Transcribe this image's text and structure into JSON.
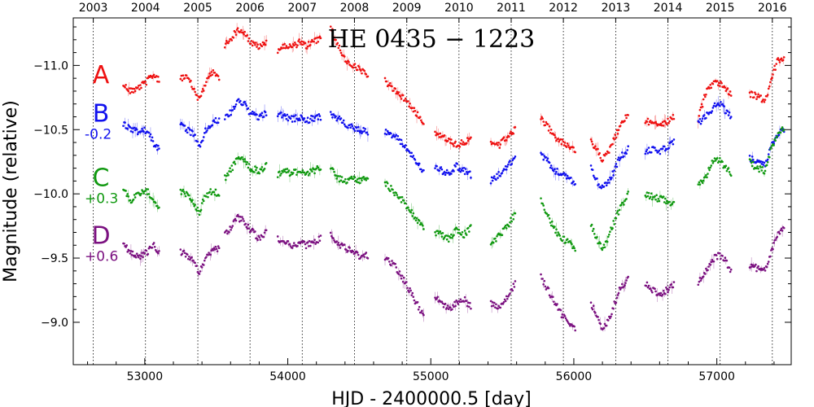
{
  "chart_data": {
    "type": "scatter",
    "title": "HE 0435 − 1223",
    "xlabel": "HJD - 2400000.5 [day]",
    "ylabel": "Magnitude (relative)",
    "xlim": [
      52500,
      57520
    ],
    "ylim": [
      -8.67,
      -11.37
    ],
    "y_inverted": true,
    "x_ticks": [
      53000,
      54000,
      55000,
      56000,
      57000
    ],
    "y_ticks": [
      -9.0,
      -9.5,
      -10.0,
      -10.5,
      -11.0
    ],
    "y_tick_labels": [
      "−9.0",
      "−9.5",
      "−10.0",
      "−10.5",
      "−11.0"
    ],
    "top_axis": {
      "years": [
        "2003",
        "2004",
        "2005",
        "2006",
        "2007",
        "2008",
        "2009",
        "2010",
        "2011",
        "2012",
        "2013",
        "2014",
        "2015",
        "2016"
      ],
      "year_mjd": [
        52640,
        53005,
        53371,
        53736,
        54101,
        54466,
        54832,
        55197,
        55562,
        55927,
        56293,
        56658,
        57023,
        57388
      ]
    },
    "grid": "vertical dotted lines at year boundaries",
    "series": [
      {
        "name": "A",
        "offset_label": "",
        "color": "#ee1111",
        "segments": [
          {
            "x": [
              52850,
              52900,
              52960,
              53020,
              53060,
              53100
            ],
            "y": [
              -10.85,
              -10.8,
              -10.83,
              -10.88,
              -10.93,
              -10.88
            ]
          },
          {
            "x": [
              53250,
              53300,
              53350,
              53380,
              53420,
              53470,
              53520
            ],
            "y": [
              -10.91,
              -10.9,
              -10.8,
              -10.73,
              -10.85,
              -10.95,
              -10.9
            ]
          },
          {
            "x": [
              53560,
              53610,
              53650,
              53700,
              53740,
              53800,
              53850
            ],
            "y": [
              -11.15,
              -11.22,
              -11.28,
              -11.25,
              -11.18,
              -11.14,
              -11.18
            ]
          },
          {
            "x": [
              53930,
              53980,
              54030,
              54080,
              54130,
              54180,
              54230
            ],
            "y": [
              -11.12,
              -11.16,
              -11.14,
              -11.18,
              -11.15,
              -11.18,
              -11.22
            ]
          },
          {
            "x": [
              54300,
              54330,
              54360,
              54400,
              54450,
              54500,
              54560
            ],
            "y": [
              -11.3,
              -11.2,
              -11.15,
              -11.05,
              -11.0,
              -10.97,
              -10.91
            ]
          },
          {
            "x": [
              54680,
              54740,
              54800,
              54850,
              54900,
              54950
            ],
            "y": [
              -10.88,
              -10.81,
              -10.76,
              -10.7,
              -10.63,
              -10.55
            ]
          },
          {
            "x": [
              55030,
              55080,
              55130,
              55180,
              55230,
              55280
            ],
            "y": [
              -10.48,
              -10.45,
              -10.42,
              -10.38,
              -10.4,
              -10.42
            ]
          },
          {
            "x": [
              55420,
              55480,
              55540,
              55590
            ],
            "y": [
              -10.4,
              -10.38,
              -10.45,
              -10.5
            ]
          },
          {
            "x": [
              55770,
              55820,
              55870,
              55920,
              55970,
              56010
            ],
            "y": [
              -10.58,
              -10.52,
              -10.44,
              -10.4,
              -10.37,
              -10.33
            ]
          },
          {
            "x": [
              56120,
              56160,
              56200,
              56230,
              56270,
              56320,
              56380
            ],
            "y": [
              -10.4,
              -10.34,
              -10.27,
              -10.3,
              -10.4,
              -10.52,
              -10.62
            ]
          },
          {
            "x": [
              56500,
              56550,
              56600,
              56650,
              56700
            ],
            "y": [
              -10.56,
              -10.56,
              -10.54,
              -10.56,
              -10.6
            ]
          },
          {
            "x": [
              56870,
              56920,
              56980,
              57020,
              57060,
              57100
            ],
            "y": [
              -10.58,
              -10.78,
              -10.88,
              -10.86,
              -10.82,
              -10.78
            ]
          },
          {
            "x": [
              57230,
              57280,
              57340,
              57380,
              57430,
              57470
            ],
            "y": [
              -10.78,
              -10.76,
              -10.72,
              -10.9,
              -11.05,
              -11.04
            ]
          }
        ]
      },
      {
        "name": "B",
        "offset_label": "-0.2",
        "color": "#1111ee",
        "segments": [
          {
            "x": [
              52850,
              52900,
              52960,
              53020,
              53060,
              53100
            ],
            "y": [
              -10.55,
              -10.5,
              -10.48,
              -10.5,
              -10.4,
              -10.35
            ]
          },
          {
            "x": [
              53250,
              53300,
              53350,
              53380,
              53420,
              53470,
              53520
            ],
            "y": [
              -10.55,
              -10.5,
              -10.45,
              -10.35,
              -10.48,
              -10.55,
              -10.58
            ]
          },
          {
            "x": [
              53560,
              53610,
              53650,
              53700,
              53740,
              53800,
              53850
            ],
            "y": [
              -10.58,
              -10.65,
              -10.73,
              -10.7,
              -10.62,
              -10.6,
              -10.63
            ]
          },
          {
            "x": [
              53930,
              53980,
              54030,
              54080,
              54130,
              54180,
              54230
            ],
            "y": [
              -10.62,
              -10.6,
              -10.58,
              -10.6,
              -10.57,
              -10.59,
              -10.6
            ]
          },
          {
            "x": [
              54300,
              54330,
              54360,
              54400,
              54450,
              54500,
              54560
            ],
            "y": [
              -10.62,
              -10.6,
              -10.58,
              -10.55,
              -10.52,
              -10.5,
              -10.48
            ]
          },
          {
            "x": [
              54680,
              54740,
              54800,
              54850,
              54900,
              54950
            ],
            "y": [
              -10.48,
              -10.45,
              -10.4,
              -10.33,
              -10.25,
              -10.17
            ]
          },
          {
            "x": [
              55030,
              55080,
              55130,
              55180,
              55230,
              55280
            ],
            "y": [
              -10.22,
              -10.18,
              -10.15,
              -10.22,
              -10.18,
              -10.15
            ]
          },
          {
            "x": [
              55420,
              55480,
              55540,
              55590
            ],
            "y": [
              -10.1,
              -10.15,
              -10.22,
              -10.27
            ]
          },
          {
            "x": [
              55770,
              55820,
              55870,
              55920,
              55970,
              56010
            ],
            "y": [
              -10.3,
              -10.25,
              -10.18,
              -10.15,
              -10.12,
              -10.08
            ]
          },
          {
            "x": [
              56120,
              56160,
              56200,
              56230,
              56270,
              56320,
              56380
            ],
            "y": [
              -10.2,
              -10.1,
              -10.05,
              -10.08,
              -10.15,
              -10.28,
              -10.35
            ]
          },
          {
            "x": [
              56500,
              56550,
              56600,
              56650,
              56700
            ],
            "y": [
              -10.32,
              -10.35,
              -10.33,
              -10.36,
              -10.4
            ]
          },
          {
            "x": [
              56870,
              56920,
              56980,
              57020,
              57060,
              57100
            ],
            "y": [
              -10.55,
              -10.6,
              -10.68,
              -10.7,
              -10.65,
              -10.6
            ]
          },
          {
            "x": [
              57230,
              57280,
              57340,
              57380,
              57430,
              57470
            ],
            "y": [
              -10.28,
              -10.25,
              -10.22,
              -10.38,
              -10.48,
              -10.5
            ]
          }
        ]
      },
      {
        "name": "C",
        "offset_label": "+0.3",
        "color": "#119911",
        "segments": [
          {
            "x": [
              52850,
              52900,
              52960,
              53020,
              53060,
              53100
            ],
            "y": [
              -10.05,
              -9.95,
              -10.0,
              -10.02,
              -9.95,
              -9.9
            ]
          },
          {
            "x": [
              53250,
              53300,
              53350,
              53380,
              53420,
              53470,
              53520
            ],
            "y": [
              -10.02,
              -10.0,
              -9.92,
              -9.85,
              -9.98,
              -10.02,
              -10.0
            ]
          },
          {
            "x": [
              53560,
              53610,
              53650,
              53700,
              53740,
              53800,
              53850
            ],
            "y": [
              -10.12,
              -10.2,
              -10.28,
              -10.25,
              -10.2,
              -10.18,
              -10.22
            ]
          },
          {
            "x": [
              53930,
              53980,
              54030,
              54080,
              54130,
              54180,
              54230
            ],
            "y": [
              -10.15,
              -10.18,
              -10.16,
              -10.18,
              -10.15,
              -10.18,
              -10.2
            ]
          },
          {
            "x": [
              54300,
              54330,
              54360,
              54400,
              54450,
              54500,
              54560
            ],
            "y": [
              -10.2,
              -10.15,
              -10.12,
              -10.1,
              -10.12,
              -10.1,
              -10.12
            ]
          },
          {
            "x": [
              54680,
              54740,
              54800,
              54850,
              54900,
              54950
            ],
            "y": [
              -10.08,
              -10.02,
              -9.95,
              -9.88,
              -9.8,
              -9.72
            ]
          },
          {
            "x": [
              55030,
              55080,
              55130,
              55180,
              55230,
              55280
            ],
            "y": [
              -9.7,
              -9.68,
              -9.65,
              -9.72,
              -9.68,
              -9.74
            ]
          },
          {
            "x": [
              55420,
              55480,
              55540,
              55590
            ],
            "y": [
              -9.6,
              -9.68,
              -9.75,
              -9.85
            ]
          },
          {
            "x": [
              55770,
              55820,
              55870,
              55920,
              55970,
              56010
            ],
            "y": [
              -9.95,
              -9.82,
              -9.72,
              -9.65,
              -9.62,
              -9.58
            ]
          },
          {
            "x": [
              56120,
              56160,
              56200,
              56230,
              56270,
              56320,
              56380
            ],
            "y": [
              -9.75,
              -9.65,
              -9.58,
              -9.62,
              -9.75,
              -9.88,
              -10.0
            ]
          },
          {
            "x": [
              56500,
              56550,
              56600,
              56650,
              56700
            ],
            "y": [
              -10.0,
              -9.98,
              -9.96,
              -9.95,
              -9.92
            ]
          },
          {
            "x": [
              56870,
              56920,
              56980,
              57020,
              57060,
              57100
            ],
            "y": [
              -10.08,
              -10.12,
              -10.28,
              -10.26,
              -10.2,
              -10.16
            ]
          },
          {
            "x": [
              57230,
              57280,
              57340,
              57380,
              57430,
              57470
            ],
            "y": [
              -10.25,
              -10.2,
              -10.18,
              -10.35,
              -10.48,
              -10.5
            ]
          }
        ]
      },
      {
        "name": "D",
        "offset_label": "+0.6",
        "color": "#7b1180",
        "segments": [
          {
            "x": [
              52850,
              52900,
              52960,
              53020,
              53060,
              53100
            ],
            "y": [
              -9.6,
              -9.55,
              -9.5,
              -9.55,
              -9.6,
              -9.55
            ]
          },
          {
            "x": [
              53250,
              53300,
              53350,
              53380,
              53420,
              53470,
              53520
            ],
            "y": [
              -9.55,
              -9.52,
              -9.45,
              -9.38,
              -9.48,
              -9.55,
              -9.58
            ]
          },
          {
            "x": [
              53560,
              53610,
              53650,
              53700,
              53740,
              53800,
              53850
            ],
            "y": [
              -9.68,
              -9.75,
              -9.82,
              -9.78,
              -9.72,
              -9.65,
              -9.7
            ]
          },
          {
            "x": [
              53930,
              53980,
              54030,
              54080,
              54130,
              54180,
              54230
            ],
            "y": [
              -9.65,
              -9.63,
              -9.6,
              -9.62,
              -9.6,
              -9.62,
              -9.65
            ]
          },
          {
            "x": [
              54300,
              54330,
              54360,
              54400,
              54450,
              54500,
              54560
            ],
            "y": [
              -9.7,
              -9.65,
              -9.6,
              -9.58,
              -9.55,
              -9.52,
              -9.52
            ]
          },
          {
            "x": [
              54680,
              54740,
              54800,
              54850,
              54900,
              54950
            ],
            "y": [
              -9.5,
              -9.45,
              -9.35,
              -9.25,
              -9.15,
              -9.05
            ]
          },
          {
            "x": [
              55030,
              55080,
              55130,
              55180,
              55230,
              55280
            ],
            "y": [
              -9.2,
              -9.15,
              -9.1,
              -9.15,
              -9.18,
              -9.12
            ]
          },
          {
            "x": [
              55420,
              55480,
              55540,
              55590
            ],
            "y": [
              -9.15,
              -9.1,
              -9.2,
              -9.3
            ]
          },
          {
            "x": [
              55770,
              55820,
              55870,
              55920,
              55970,
              56010
            ],
            "y": [
              -9.35,
              -9.25,
              -9.15,
              -9.05,
              -9.0,
              -8.95
            ]
          },
          {
            "x": [
              56120,
              56160,
              56200,
              56230,
              56270,
              56320,
              56380
            ],
            "y": [
              -9.15,
              -9.05,
              -8.95,
              -8.98,
              -9.1,
              -9.25,
              -9.35
            ]
          },
          {
            "x": [
              56500,
              56550,
              56600,
              56650,
              56700
            ],
            "y": [
              -9.3,
              -9.25,
              -9.22,
              -9.25,
              -9.3
            ]
          },
          {
            "x": [
              56870,
              56920,
              56980,
              57020,
              57060,
              57100
            ],
            "y": [
              -9.3,
              -9.4,
              -9.5,
              -9.52,
              -9.48,
              -9.4
            ]
          },
          {
            "x": [
              57230,
              57280,
              57340,
              57380,
              57430,
              57470
            ],
            "y": [
              -9.45,
              -9.42,
              -9.4,
              -9.55,
              -9.7,
              -9.75
            ]
          }
        ]
      }
    ]
  }
}
